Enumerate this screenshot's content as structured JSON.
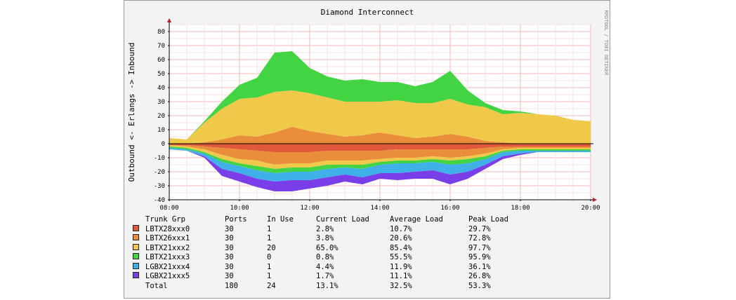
{
  "chart_data": {
    "type": "area",
    "title": "Diamond Interconnect",
    "ylabel": "Outbound <- Erlangs -> Inbound",
    "side_label": "RRDTOOL / TOBI OETIKER",
    "ylim": [
      -40,
      85
    ],
    "yticks": [
      -40,
      -30,
      -20,
      -10,
      0,
      10,
      20,
      30,
      40,
      50,
      60,
      70,
      80
    ],
    "xlim": [
      "08:00",
      "20:00"
    ],
    "xticks": [
      "08:00",
      "10:00",
      "12:00",
      "14:00",
      "16:00",
      "18:00",
      "20:00"
    ],
    "grid": true,
    "times": [
      "08:00",
      "08:30",
      "09:00",
      "09:30",
      "10:00",
      "10:30",
      "11:00",
      "11:30",
      "12:00",
      "12:30",
      "13:00",
      "13:30",
      "14:00",
      "14:30",
      "15:00",
      "15:30",
      "16:00",
      "16:30",
      "17:00",
      "17:30",
      "18:00",
      "18:30",
      "19:00",
      "19:30",
      "20:00"
    ],
    "inbound": [
      {
        "name": "LBTX28xxx0",
        "color": "#e0583b",
        "values": [
          0,
          0,
          0,
          0,
          0,
          0,
          0,
          0,
          0,
          0,
          0,
          0,
          0,
          0,
          0,
          0,
          0,
          0,
          0,
          0,
          0,
          0,
          0,
          0,
          0
        ]
      },
      {
        "name": "LBTX26xxx1",
        "color": "#ea8e3b",
        "values": [
          0,
          0,
          1,
          3,
          6,
          5,
          8,
          12,
          9,
          7,
          5,
          6,
          8,
          6,
          4,
          5,
          7,
          5,
          2,
          1,
          0,
          0,
          0,
          0,
          0
        ]
      },
      {
        "name": "LBTX21xxx2",
        "color": "#f0c84a",
        "values": [
          4,
          3,
          14,
          22,
          26,
          28,
          29,
          26,
          27,
          26,
          25,
          24,
          22,
          25,
          25,
          24,
          25,
          23,
          24,
          20,
          22,
          21,
          20,
          17,
          16
        ]
      },
      {
        "name": "LBTX21xxx3",
        "color": "#42d442",
        "values": [
          0,
          0,
          1,
          5,
          10,
          14,
          28,
          28,
          18,
          15,
          15,
          16,
          14,
          13,
          12,
          15,
          20,
          10,
          3,
          3,
          1,
          0,
          0,
          0,
          0
        ]
      },
      {
        "name": "LGBX21xxx4",
        "color": "#40b0e8",
        "values": [
          0,
          0,
          0,
          0,
          0,
          0,
          0,
          0,
          0,
          0,
          0,
          0,
          0,
          0,
          0,
          0,
          0,
          0,
          0,
          0,
          0,
          0,
          0,
          0,
          0
        ]
      },
      {
        "name": "LGBX21xxx5",
        "color": "#7a3ee8",
        "values": [
          0,
          0,
          0,
          0,
          0,
          0,
          0,
          0,
          0,
          0,
          0,
          0,
          0,
          0,
          0,
          0,
          0,
          0,
          0,
          0,
          0,
          0,
          0,
          0,
          0
        ]
      }
    ],
    "outbound": [
      {
        "name": "LBTX28xxx0",
        "color": "#e0583b",
        "values": [
          1,
          1,
          2,
          3,
          4,
          5,
          6,
          6,
          6,
          5,
          5,
          5,
          5,
          4,
          4,
          4,
          4,
          4,
          3,
          2,
          2,
          2,
          2,
          2,
          2
        ]
      },
      {
        "name": "LBTX26xxx1",
        "color": "#ea8e3b",
        "values": [
          0,
          1,
          2,
          5,
          7,
          7,
          9,
          8,
          8,
          7,
          7,
          7,
          6,
          6,
          6,
          5,
          6,
          5,
          4,
          2,
          1,
          1,
          1,
          1,
          1
        ]
      },
      {
        "name": "LBTX21xxx2",
        "color": "#f0c84a",
        "values": [
          1,
          1,
          2,
          3,
          3,
          4,
          3,
          3,
          3,
          3,
          3,
          3,
          2,
          2,
          2,
          2,
          2,
          2,
          2,
          1,
          1,
          1,
          1,
          1,
          1
        ]
      },
      {
        "name": "LBTX21xxx3",
        "color": "#42d442",
        "values": [
          1,
          1,
          1,
          2,
          2,
          3,
          3,
          3,
          3,
          3,
          2,
          3,
          2,
          2,
          2,
          2,
          3,
          3,
          2,
          1,
          1,
          1,
          1,
          1,
          1
        ]
      },
      {
        "name": "LGBX21xxx4",
        "color": "#40b0e8",
        "values": [
          1,
          1,
          2,
          5,
          5,
          6,
          6,
          6,
          6,
          6,
          5,
          6,
          6,
          7,
          6,
          6,
          7,
          6,
          4,
          3,
          2,
          1,
          1,
          1,
          1
        ]
      },
      {
        "name": "LGBX21xxx5",
        "color": "#7a3ee8",
        "values": [
          0,
          0,
          1,
          5,
          6,
          6,
          7,
          8,
          6,
          6,
          5,
          5,
          4,
          5,
          5,
          6,
          7,
          5,
          3,
          2,
          1,
          0,
          0,
          0,
          0
        ]
      }
    ],
    "table": {
      "headers": [
        "Trunk Grp",
        "Ports",
        "In Use",
        "Current Load",
        "Average Load",
        "Peak Load"
      ],
      "rows": [
        {
          "name": "LBTX28xxx0",
          "color": "#e0583b",
          "ports": "30",
          "inuse": "1",
          "current": "2.8%",
          "average": "10.7%",
          "peak": "29.7%"
        },
        {
          "name": "LBTX26xxx1",
          "color": "#ea8e3b",
          "ports": "30",
          "inuse": "1",
          "current": "3.8%",
          "average": "20.6%",
          "peak": "72.8%"
        },
        {
          "name": "LBTX21xxx2",
          "color": "#f0c84a",
          "ports": "30",
          "inuse": "20",
          "current": "65.0%",
          "average": "85.4%",
          "peak": "97.7%"
        },
        {
          "name": "LBTX21xxx3",
          "color": "#42d442",
          "ports": "30",
          "inuse": "0",
          "current": "0.8%",
          "average": "55.5%",
          "peak": "95.9%"
        },
        {
          "name": "LGBX21xxx4",
          "color": "#40b0e8",
          "ports": "30",
          "inuse": "1",
          "current": "4.4%",
          "average": "11.9%",
          "peak": "36.1%"
        },
        {
          "name": "LGBX21xxx5",
          "color": "#7a3ee8",
          "ports": "30",
          "inuse": "1",
          "current": "1.7%",
          "average": "11.1%",
          "peak": "26.8%"
        }
      ],
      "total": {
        "name": "Total",
        "ports": "180",
        "inuse": "24",
        "current": "13.1%",
        "average": "32.5%",
        "peak": "53.3%"
      }
    }
  }
}
